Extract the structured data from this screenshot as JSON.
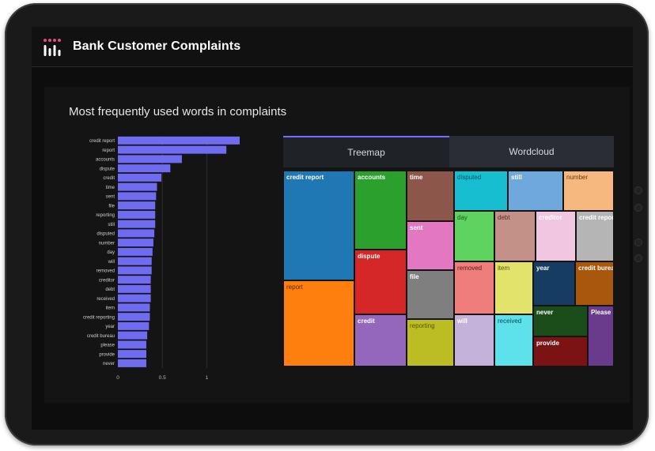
{
  "app": {
    "title": "Bank Customer Complaints"
  },
  "card": {
    "title": "Most frequently used words in complaints"
  },
  "tabs": [
    {
      "label": "Treemap",
      "active": true
    },
    {
      "label": "Wordcloud",
      "active": false
    }
  ],
  "colors": {
    "bar": "#6f6cf2",
    "accent": "#7a6cff",
    "background": "#0d0d0d"
  },
  "chart_data": {
    "type": "bar",
    "orientation": "horizontal",
    "title": "",
    "categories": [
      "credit report",
      "report",
      "accounts",
      "dispute",
      "credit",
      "time",
      "sent",
      "file",
      "reporting",
      "still",
      "disputed",
      "number",
      "day",
      "will",
      "removed",
      "creditor",
      "debt",
      "received",
      "item",
      "credit reporting",
      "year",
      "credit bureau",
      "please",
      "provide",
      "never"
    ],
    "values": [
      1.37,
      1.22,
      0.72,
      0.59,
      0.49,
      0.44,
      0.43,
      0.42,
      0.42,
      0.42,
      0.41,
      0.4,
      0.39,
      0.38,
      0.38,
      0.37,
      0.37,
      0.37,
      0.36,
      0.36,
      0.35,
      0.33,
      0.32,
      0.32,
      0.32
    ],
    "xlim": [
      0,
      1.45
    ],
    "xticks": [
      "0",
      "0.5",
      "1"
    ],
    "grid": true
  },
  "treemap": [
    {
      "label": "credit report",
      "color": "#1f77b4",
      "text": "#ffffff"
    },
    {
      "label": "report",
      "color": "#ff7f0e",
      "text": "#5a2a00"
    },
    {
      "label": "accounts",
      "color": "#2ca02c",
      "text": "#ffffff"
    },
    {
      "label": "dispute",
      "color": "#d62728",
      "text": "#ffffff"
    },
    {
      "label": "credit",
      "color": "#9467bd",
      "text": "#ffffff"
    },
    {
      "label": "time",
      "color": "#8c564b",
      "text": "#ffffff"
    },
    {
      "label": "sent",
      "color": "#e377c2",
      "text": "#ffffff"
    },
    {
      "label": "file",
      "color": "#7f7f7f",
      "text": "#ffffff"
    },
    {
      "label": "reporting",
      "color": "#bcbd22",
      "text": "#555500"
    },
    {
      "label": "disputed",
      "color": "#17becf",
      "text": "#0a5560"
    },
    {
      "label": "still",
      "color": "#6fa8dc",
      "text": "#ffffff"
    },
    {
      "label": "number",
      "color": "#f6b87f",
      "text": "#6a3a10"
    },
    {
      "label": "day",
      "color": "#5fd35f",
      "text": "#1a5a1a"
    },
    {
      "label": "debt",
      "color": "#c49189",
      "text": "#5a302a"
    },
    {
      "label": "creditor",
      "color": "#f1c6e0",
      "text": "#ffffff"
    },
    {
      "label": "credit reporting",
      "color": "#b5b5b5",
      "text": "#ffffff"
    },
    {
      "label": "removed",
      "color": "#ee7d7b",
      "text": "#5a1a1a"
    },
    {
      "label": "item",
      "color": "#e2e36a",
      "text": "#55550a"
    },
    {
      "label": "year",
      "color": "#173c63",
      "text": "#ffffff"
    },
    {
      "label": "credit bureau",
      "color": "#a9570c",
      "text": "#ffffff"
    },
    {
      "label": "will",
      "color": "#c4b2db",
      "text": "#ffffff"
    },
    {
      "label": "received",
      "color": "#5de2ec",
      "text": "#0a4a50"
    },
    {
      "label": "never",
      "color": "#1b4d1b",
      "text": "#ffffff"
    },
    {
      "label": "Please",
      "color": "#6a3a8c",
      "text": "#ffffff"
    },
    {
      "label": "provide",
      "color": "#7b1214",
      "text": "#ffffff"
    }
  ]
}
